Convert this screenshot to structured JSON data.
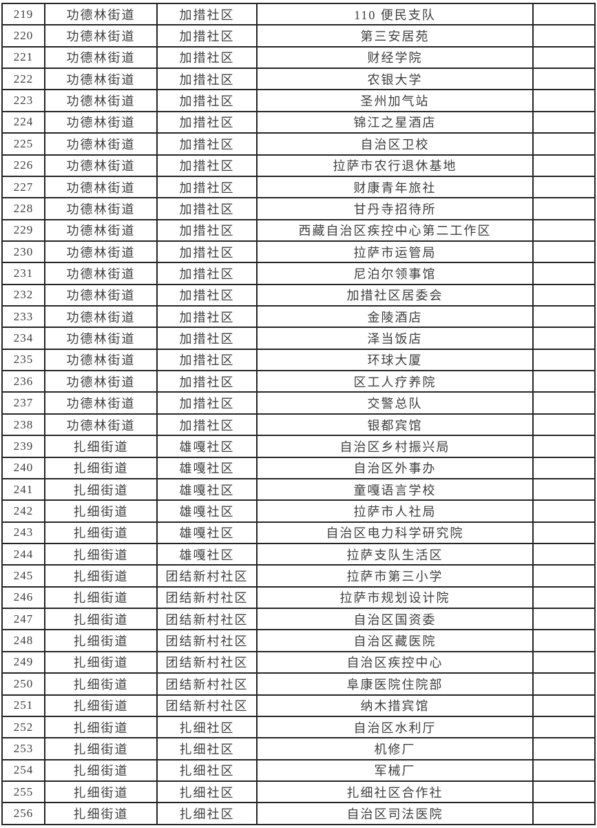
{
  "page": {
    "background_color": "#ffffff",
    "border_color": "#242424",
    "text_color": "#3e3e3e"
  },
  "table": {
    "rows": [
      {
        "no": "219",
        "street": "功德林街道",
        "community": "加措社区",
        "place": "110 便民支队",
        "note": ""
      },
      {
        "no": "220",
        "street": "功德林街道",
        "community": "加措社区",
        "place": "第三安居苑",
        "note": ""
      },
      {
        "no": "221",
        "street": "功德林街道",
        "community": "加措社区",
        "place": "财经学院",
        "note": ""
      },
      {
        "no": "222",
        "street": "功德林街道",
        "community": "加措社区",
        "place": "农银大学",
        "note": ""
      },
      {
        "no": "223",
        "street": "功德林街道",
        "community": "加措社区",
        "place": "圣州加气站",
        "note": ""
      },
      {
        "no": "224",
        "street": "功德林街道",
        "community": "加措社区",
        "place": "锦江之星酒店",
        "note": ""
      },
      {
        "no": "225",
        "street": "功德林街道",
        "community": "加措社区",
        "place": "自治区卫校",
        "note": ""
      },
      {
        "no": "226",
        "street": "功德林街道",
        "community": "加措社区",
        "place": "拉萨市农行退休基地",
        "note": ""
      },
      {
        "no": "227",
        "street": "功德林街道",
        "community": "加措社区",
        "place": "财康青年旅社",
        "note": ""
      },
      {
        "no": "228",
        "street": "功德林街道",
        "community": "加措社区",
        "place": "甘丹寺招待所",
        "note": ""
      },
      {
        "no": "229",
        "street": "功德林街道",
        "community": "加措社区",
        "place": "西藏自治区疾控中心第二工作区",
        "note": ""
      },
      {
        "no": "230",
        "street": "功德林街道",
        "community": "加措社区",
        "place": "拉萨市运管局",
        "note": ""
      },
      {
        "no": "231",
        "street": "功德林街道",
        "community": "加措社区",
        "place": "尼泊尔领事馆",
        "note": ""
      },
      {
        "no": "232",
        "street": "功德林街道",
        "community": "加措社区",
        "place": "加措社区居委会",
        "note": ""
      },
      {
        "no": "233",
        "street": "功德林街道",
        "community": "加措社区",
        "place": "金陵酒店",
        "note": ""
      },
      {
        "no": "234",
        "street": "功德林街道",
        "community": "加措社区",
        "place": "泽当饭店",
        "note": ""
      },
      {
        "no": "235",
        "street": "功德林街道",
        "community": "加措社区",
        "place": "环球大厦",
        "note": ""
      },
      {
        "no": "236",
        "street": "功德林街道",
        "community": "加措社区",
        "place": "区工人疗养院",
        "note": ""
      },
      {
        "no": "237",
        "street": "功德林街道",
        "community": "加措社区",
        "place": "交警总队",
        "note": ""
      },
      {
        "no": "238",
        "street": "功德林街道",
        "community": "加措社区",
        "place": "银都宾馆",
        "note": ""
      },
      {
        "no": "239",
        "street": "扎细街道",
        "community": "雄嘎社区",
        "place": "自治区乡村振兴局",
        "note": ""
      },
      {
        "no": "240",
        "street": "扎细街道",
        "community": "雄嘎社区",
        "place": "自治区外事办",
        "note": ""
      },
      {
        "no": "241",
        "street": "扎细街道",
        "community": "雄嘎社区",
        "place": "童嘎语言学校",
        "note": ""
      },
      {
        "no": "242",
        "street": "扎细街道",
        "community": "雄嘎社区",
        "place": "拉萨市人社局",
        "note": ""
      },
      {
        "no": "243",
        "street": "扎细街道",
        "community": "雄嘎社区",
        "place": "自治区电力科学研究院",
        "note": ""
      },
      {
        "no": "244",
        "street": "扎细街道",
        "community": "雄嘎社区",
        "place": "拉萨支队生活区",
        "note": ""
      },
      {
        "no": "245",
        "street": "扎细街道",
        "community": "团结新村社区",
        "place": "拉萨市第三小学",
        "note": ""
      },
      {
        "no": "246",
        "street": "扎细街道",
        "community": "团结新村社区",
        "place": "拉萨市规划设计院",
        "note": ""
      },
      {
        "no": "247",
        "street": "扎细街道",
        "community": "团结新村社区",
        "place": "自治区国资委",
        "note": ""
      },
      {
        "no": "248",
        "street": "扎细街道",
        "community": "团结新村社区",
        "place": "自治区藏医院",
        "note": ""
      },
      {
        "no": "249",
        "street": "扎细街道",
        "community": "团结新村社区",
        "place": "自治区疾控中心",
        "note": ""
      },
      {
        "no": "250",
        "street": "扎细街道",
        "community": "团结新村社区",
        "place": "阜康医院住院部",
        "note": ""
      },
      {
        "no": "251",
        "street": "扎细街道",
        "community": "团结新村社区",
        "place": "纳木措宾馆",
        "note": ""
      },
      {
        "no": "252",
        "street": "扎细街道",
        "community": "扎细社区",
        "place": "自治区水利厅",
        "note": ""
      },
      {
        "no": "253",
        "street": "扎细街道",
        "community": "扎细社区",
        "place": "机修厂",
        "note": ""
      },
      {
        "no": "254",
        "street": "扎细街道",
        "community": "扎细社区",
        "place": "军械厂",
        "note": ""
      },
      {
        "no": "255",
        "street": "扎细街道",
        "community": "扎细社区",
        "place": "扎细社区合作社",
        "note": ""
      },
      {
        "no": "256",
        "street": "扎细街道",
        "community": "扎细社区",
        "place": "自治区司法医院",
        "note": ""
      }
    ]
  }
}
